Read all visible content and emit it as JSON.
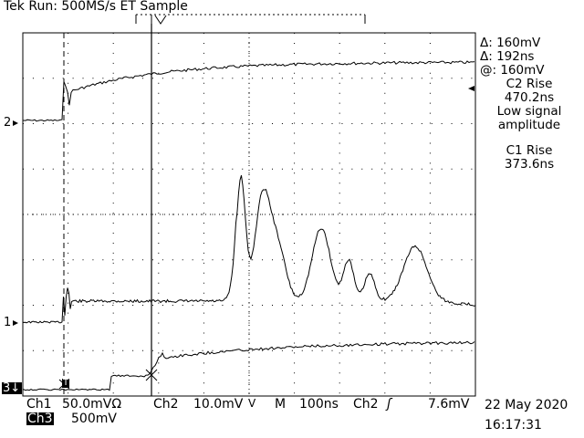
{
  "header": {
    "title": "Tek Run: 500MS/s ET Sample"
  },
  "channel_markers": {
    "ch2": "2",
    "ch1": "1",
    "ch3": "3"
  },
  "readout": {
    "delta_v": "Δ: 160mV",
    "delta_t": "Δ: 192ns",
    "at_v": "@: 160mV",
    "c2_rise_label": "C2 Rise",
    "c2_rise_value": "470.2ns",
    "low_signal_line1": "Low signal",
    "low_signal_line2": "amplitude",
    "c1_rise_label": "C1 Rise",
    "c1_rise_value": "373.6ns"
  },
  "footer": {
    "ch1_label": "Ch1",
    "ch1_scale": "50.0mVΩ",
    "ch2_label": "Ch2",
    "ch2_scale": "10.0mV",
    "timebase_label": "M",
    "timebase_value": "100ns",
    "trigger_source": "Ch2",
    "trigger_level": "7.6mV",
    "ch3_label": "Ch3",
    "ch3_scale": "500mV",
    "date": "22 May 2020",
    "time": "16:17:31"
  },
  "trigger_marker": "T",
  "colors": {
    "trace": "#000000",
    "grid": "#000000",
    "background": "#ffffff"
  }
}
